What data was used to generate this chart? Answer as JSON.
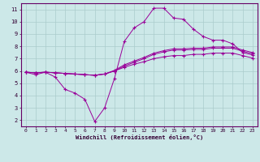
{
  "background_color": "#cce8e8",
  "grid_color": "#aacccc",
  "line_color": "#990099",
  "xlabel": "Windchill (Refroidissement éolien,°C)",
  "xlim": [
    -0.5,
    23.5
  ],
  "ylim": [
    1.5,
    11.5
  ],
  "yticks": [
    2,
    3,
    4,
    5,
    6,
    7,
    8,
    9,
    10,
    11
  ],
  "xticks": [
    0,
    1,
    2,
    3,
    4,
    5,
    6,
    7,
    8,
    9,
    10,
    11,
    12,
    13,
    14,
    15,
    16,
    17,
    18,
    19,
    20,
    21,
    22,
    23
  ],
  "line1_x": [
    0,
    1,
    2,
    3,
    4,
    5,
    6,
    7,
    8,
    9,
    10,
    11,
    12,
    13,
    14,
    15,
    16,
    17,
    18,
    19,
    20,
    21,
    22,
    23
  ],
  "line1_y": [
    5.9,
    5.7,
    5.9,
    5.5,
    4.5,
    4.2,
    3.7,
    1.9,
    3.0,
    5.4,
    8.4,
    9.5,
    10.0,
    11.1,
    11.1,
    10.3,
    10.2,
    9.4,
    8.8,
    8.5,
    8.5,
    8.2,
    7.5,
    7.3
  ],
  "line2_x": [
    0,
    1,
    2,
    3,
    4,
    5,
    6,
    7,
    8,
    9,
    10,
    11,
    12,
    13,
    14,
    15,
    16,
    17,
    18,
    19,
    20,
    21,
    22,
    23
  ],
  "line2_y": [
    5.9,
    5.85,
    5.9,
    5.85,
    5.8,
    5.75,
    5.7,
    5.65,
    5.75,
    6.0,
    6.4,
    6.7,
    7.0,
    7.35,
    7.55,
    7.7,
    7.7,
    7.75,
    7.75,
    7.85,
    7.85,
    7.85,
    7.6,
    7.4
  ],
  "line3_x": [
    0,
    1,
    2,
    3,
    4,
    5,
    6,
    7,
    8,
    9,
    10,
    11,
    12,
    13,
    14,
    15,
    16,
    17,
    18,
    19,
    20,
    21,
    22,
    23
  ],
  "line3_y": [
    5.9,
    5.85,
    5.9,
    5.85,
    5.8,
    5.75,
    5.7,
    5.65,
    5.75,
    6.05,
    6.5,
    6.8,
    7.1,
    7.45,
    7.65,
    7.8,
    7.8,
    7.85,
    7.85,
    7.95,
    7.95,
    7.95,
    7.7,
    7.5
  ],
  "line4_x": [
    0,
    1,
    2,
    3,
    4,
    5,
    6,
    7,
    8,
    9,
    10,
    11,
    12,
    13,
    14,
    15,
    16,
    17,
    18,
    19,
    20,
    21,
    22,
    23
  ],
  "line4_y": [
    5.9,
    5.85,
    5.9,
    5.85,
    5.8,
    5.75,
    5.7,
    5.65,
    5.75,
    6.0,
    6.3,
    6.55,
    6.75,
    7.0,
    7.15,
    7.25,
    7.25,
    7.35,
    7.35,
    7.45,
    7.45,
    7.45,
    7.25,
    7.05
  ]
}
